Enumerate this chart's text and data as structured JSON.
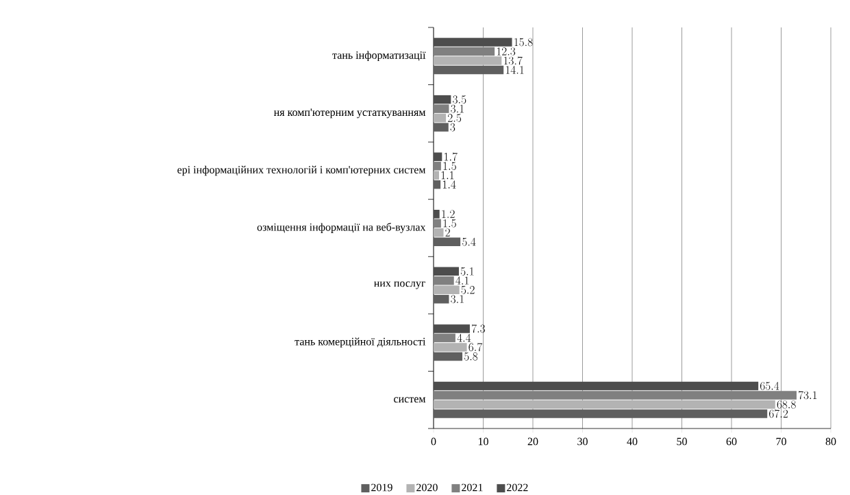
{
  "chart_data": {
    "type": "bar",
    "orientation": "horizontal",
    "categories": [
      "тань інформатизації",
      "ня комп'ютерним устаткуванням",
      "ері інформаційних технологій і комп'ютерних систем",
      "озміщення інформації на веб-вузлах",
      "них послуг",
      "тань комерційної діяльності",
      "систем"
    ],
    "series": [
      {
        "name": "2019",
        "color": "#5f5f5f",
        "values": [
          14.1,
          3,
          1.4,
          5.4,
          3.1,
          5.8,
          67.2
        ]
      },
      {
        "name": "2020",
        "color": "#b3b3b3",
        "values": [
          13.7,
          2.5,
          1.1,
          2,
          5.2,
          6.7,
          68.8
        ]
      },
      {
        "name": "2021",
        "color": "#808080",
        "values": [
          12.3,
          3.1,
          1.5,
          1.5,
          4.1,
          4.4,
          73.1
        ]
      },
      {
        "name": "2022",
        "color": "#4d4d4d",
        "values": [
          15.8,
          3.5,
          1.7,
          1.2,
          5.1,
          7.3,
          65.4
        ]
      }
    ],
    "xlim": [
      0,
      80
    ],
    "xticks": [
      0,
      10,
      20,
      30,
      40,
      50,
      60,
      70,
      80
    ],
    "grid": "x",
    "legend": "bottom",
    "data_labels": true
  }
}
